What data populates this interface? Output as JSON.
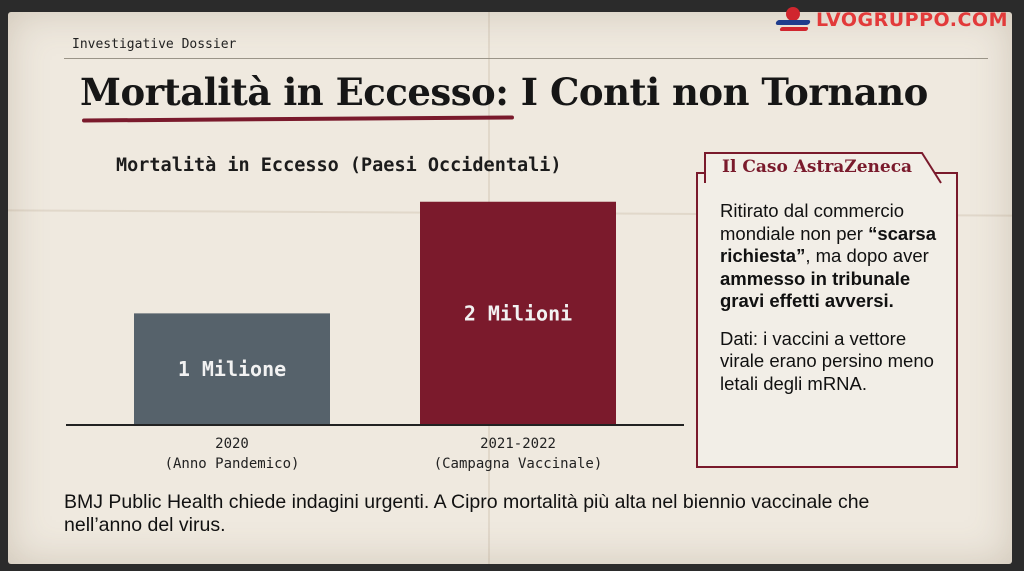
{
  "brand": {
    "logo_text": "LVOGRUPPO.COM",
    "colors": {
      "red": "#e23a3a",
      "blue": "#1f3c8c"
    }
  },
  "kicker": "Investigative Dossier",
  "headline": {
    "part1": "Mortalità in Eccesso",
    "part2": ": I Conti non Tornano",
    "accent": "#7a1a2c"
  },
  "chart_data": {
    "type": "bar",
    "title": "Mortalità in Eccesso (Paesi Occidentali)",
    "categories": [
      {
        "line1": "2020",
        "line2": "(Anno Pandemico)"
      },
      {
        "line1": "2021-2022",
        "line2": "(Campagna Vaccinale)"
      }
    ],
    "values": [
      1,
      2
    ],
    "data_labels": [
      "1 Milione",
      "2 Milioni"
    ],
    "colors": [
      "#56626b",
      "#7b1a2c"
    ],
    "ylim": [
      0,
      2.15
    ],
    "grid": false,
    "legend": "none"
  },
  "sidebar_box": {
    "heading": "Il Caso AstraZeneca",
    "p1_a": "Ritirato dal commercio mondiale non per ",
    "p1_b": "“scarsa richiesta”",
    "p1_c": ", ma dopo aver ",
    "p1_d": "ammesso in tribunale gravi effetti avversi.",
    "p2": "Dati: i vaccini a vettore virale erano persino meno letali degli mRNA."
  },
  "footer": "BMJ Public Health chiede indagini urgenti. A Cipro mortalità più alta nel biennio vaccinale che nell’anno del virus."
}
